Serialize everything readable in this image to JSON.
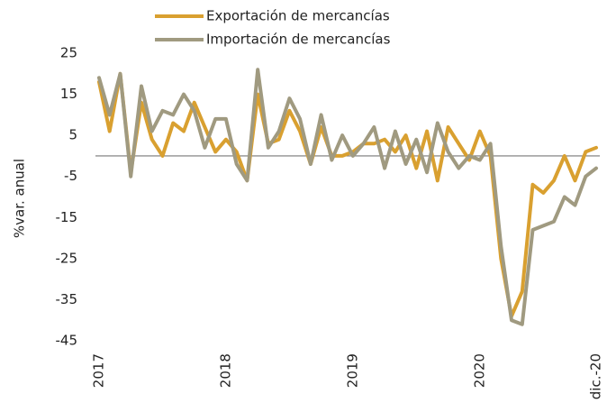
{
  "chart_data": {
    "type": "line",
    "y_axis_label": "%var. anual",
    "categories": [
      "2017",
      null,
      null,
      null,
      null,
      null,
      null,
      null,
      null,
      null,
      null,
      null,
      "2018",
      null,
      null,
      null,
      null,
      null,
      null,
      null,
      null,
      null,
      null,
      null,
      "2019",
      null,
      null,
      null,
      null,
      null,
      null,
      null,
      null,
      null,
      null,
      null,
      "2020",
      null,
      null,
      null,
      null,
      null,
      null,
      null,
      null,
      null,
      null,
      "dic.-20"
    ],
    "series": [
      {
        "name": "Exportación de mercancías",
        "color": "#d9a030",
        "values": [
          18,
          6,
          20,
          -4,
          13,
          4,
          0,
          8,
          6,
          13,
          7,
          1,
          4,
          1,
          -6,
          15,
          3,
          4,
          11,
          6,
          -2,
          7,
          0,
          0,
          1,
          3,
          3,
          4,
          1,
          5,
          -3,
          6,
          -6,
          7,
          3,
          -1,
          6,
          0,
          -25,
          -39,
          -33,
          -7,
          -9,
          -6,
          0,
          -6,
          1,
          2
        ]
      },
      {
        "name": "Importación de mercancías",
        "color": "#a09a80",
        "values": [
          19,
          10,
          20,
          -5,
          17,
          6,
          11,
          10,
          15,
          11,
          2,
          9,
          9,
          -2,
          -6,
          21,
          2,
          6,
          14,
          9,
          -2,
          10,
          -1,
          5,
          0,
          3,
          7,
          -3,
          6,
          -2,
          4,
          -4,
          8,
          1,
          -3,
          0,
          -1,
          3,
          -22,
          -40,
          -41,
          -18,
          -17,
          -16,
          -10,
          -12,
          -5,
          -3
        ]
      }
    ],
    "ylim": [
      -45,
      25
    ],
    "yticks": [
      25,
      15,
      5,
      -5,
      -15,
      -25,
      -35,
      -45
    ],
    "grid": false,
    "legend": "top"
  }
}
